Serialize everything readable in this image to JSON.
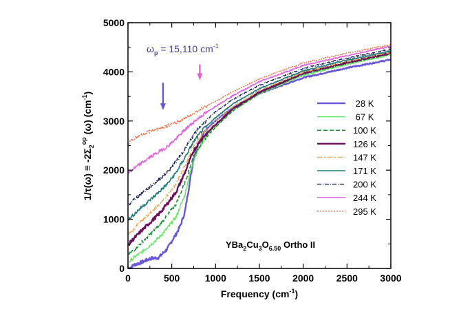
{
  "chart_data": {
    "type": "line",
    "xlabel": "Frequency (cm",
    "xlabel_sup": "-1",
    "xlabel_tail": ")",
    "ylabel": {
      "prefix": "1/τ(ω) ≡ -2Σ",
      "sub": "2",
      "sup": "op",
      "suffix": " (ω) (cm",
      "sup2": "-1",
      "tail": ")"
    },
    "xlim": [
      0,
      3000
    ],
    "ylim": [
      0,
      5000
    ],
    "xticks": [
      0,
      500,
      1000,
      1500,
      2000,
      2500,
      3000
    ],
    "xtick_labels": [
      "0",
      "500",
      "1000",
      "1500",
      "2000",
      "2500",
      "3000"
    ],
    "yticks": [
      0,
      1000,
      2000,
      3000,
      4000,
      5000
    ],
    "ytick_labels": [
      "0",
      "1000",
      "2000",
      "3000",
      "4000",
      "5000"
    ],
    "annotations": {
      "plasma_frequency": {
        "omega": "ω",
        "sub": "p",
        "eq": " = 15,110 cm",
        "sup": "-1"
      },
      "arrows": [
        {
          "x": 400,
          "y_from": 3780,
          "y_to": 3220,
          "color": "#6a56d8"
        },
        {
          "x": 820,
          "y_from": 4150,
          "y_to": 3830,
          "color": "#e65fd6"
        }
      ],
      "sample": {
        "base": "YBa",
        "s1": "2",
        "mid": "Cu",
        "s2": "3",
        "o": "O",
        "s3": "6.50",
        "tail": " Ortho II"
      }
    },
    "series": [
      {
        "name": "28 K",
        "color": "#6a56d8",
        "dash": "",
        "width": 2.4,
        "x": [
          10,
          80,
          150,
          250,
          350,
          450,
          500,
          550,
          600,
          650,
          700,
          750,
          800,
          900,
          1000,
          1200,
          1500,
          2000,
          2500,
          3000
        ],
        "y": [
          0,
          80,
          120,
          200,
          220,
          400,
          560,
          700,
          880,
          1150,
          1700,
          2250,
          2550,
          2850,
          3000,
          3280,
          3560,
          3880,
          4080,
          4250
        ]
      },
      {
        "name": "67 K",
        "color": "#66e866",
        "dash": "",
        "width": 1.5,
        "x": [
          10,
          80,
          150,
          250,
          350,
          450,
          550,
          650,
          700,
          750,
          800,
          900,
          1000,
          1200,
          1500,
          2000,
          2500,
          3000
        ],
        "y": [
          130,
          240,
          320,
          470,
          620,
          820,
          1050,
          1500,
          1900,
          2200,
          2420,
          2720,
          2900,
          3220,
          3560,
          3930,
          4150,
          4350
        ]
      },
      {
        "name": "100 K",
        "color": "#1f8f3a",
        "dash": "6,3",
        "width": 1.5,
        "x": [
          10,
          80,
          150,
          250,
          350,
          450,
          550,
          650,
          750,
          850,
          1000,
          1200,
          1500,
          2000,
          2500,
          3000
        ],
        "y": [
          280,
          400,
          520,
          690,
          860,
          1080,
          1320,
          1750,
          2300,
          2580,
          2880,
          3210,
          3560,
          3960,
          4170,
          4370
        ]
      },
      {
        "name": "126 K",
        "color": "#6e0f5e",
        "dash": "",
        "width": 2.4,
        "x": [
          10,
          80,
          150,
          250,
          350,
          450,
          550,
          650,
          750,
          850,
          1000,
          1200,
          1500,
          2000,
          2500,
          3000
        ],
        "y": [
          500,
          630,
          760,
          930,
          1100,
          1320,
          1560,
          1950,
          2400,
          2660,
          2930,
          3250,
          3590,
          3970,
          4190,
          4380
        ]
      },
      {
        "name": "147 K",
        "color": "#f2a54a",
        "dash": "7,3,2,3",
        "width": 1.4,
        "x": [
          10,
          80,
          150,
          250,
          350,
          450,
          550,
          650,
          750,
          850,
          1000,
          1200,
          1500,
          2000,
          2500,
          3000
        ],
        "y": [
          700,
          830,
          960,
          1120,
          1290,
          1480,
          1730,
          2080,
          2480,
          2730,
          2990,
          3290,
          3620,
          3990,
          4210,
          4400
        ]
      },
      {
        "name": "171 K",
        "color": "#1e7a78",
        "dash": "",
        "width": 1.6,
        "x": [
          10,
          80,
          150,
          250,
          350,
          450,
          550,
          650,
          750,
          850,
          1000,
          1200,
          1500,
          2000,
          2500,
          3000
        ],
        "y": [
          1000,
          1120,
          1240,
          1390,
          1550,
          1720,
          1950,
          2260,
          2580,
          2810,
          3070,
          3350,
          3660,
          4020,
          4240,
          4420
        ]
      },
      {
        "name": "200 K",
        "color": "#1a2050",
        "dash": "6,2,1,2",
        "width": 1.4,
        "x": [
          10,
          80,
          150,
          250,
          350,
          450,
          550,
          650,
          750,
          850,
          1000,
          1200,
          1500,
          2000,
          2500,
          3000
        ],
        "y": [
          1300,
          1420,
          1520,
          1660,
          1800,
          1960,
          2180,
          2430,
          2720,
          2940,
          3190,
          3440,
          3730,
          4070,
          4280,
          4460
        ]
      },
      {
        "name": "244 K",
        "color": "#e066e0",
        "dash": "",
        "width": 1.6,
        "x": [
          10,
          80,
          150,
          250,
          350,
          450,
          550,
          650,
          750,
          850,
          1000,
          1200,
          1500,
          2000,
          2500,
          3000
        ],
        "y": [
          1950,
          2050,
          2140,
          2260,
          2370,
          2480,
          2640,
          2820,
          2980,
          3120,
          3300,
          3520,
          3800,
          4130,
          4330,
          4520
        ]
      },
      {
        "name": "295 K",
        "color": "#ee6b3c",
        "dash": "2,2",
        "width": 1.4,
        "x": [
          10,
          80,
          150,
          250,
          350,
          450,
          550,
          650,
          750,
          850,
          1000,
          1200,
          1500,
          2000,
          2500,
          3000
        ],
        "y": [
          2550,
          2650,
          2720,
          2790,
          2850,
          2900,
          2970,
          3060,
          3160,
          3260,
          3400,
          3600,
          3860,
          4180,
          4380,
          4550
        ]
      }
    ]
  }
}
